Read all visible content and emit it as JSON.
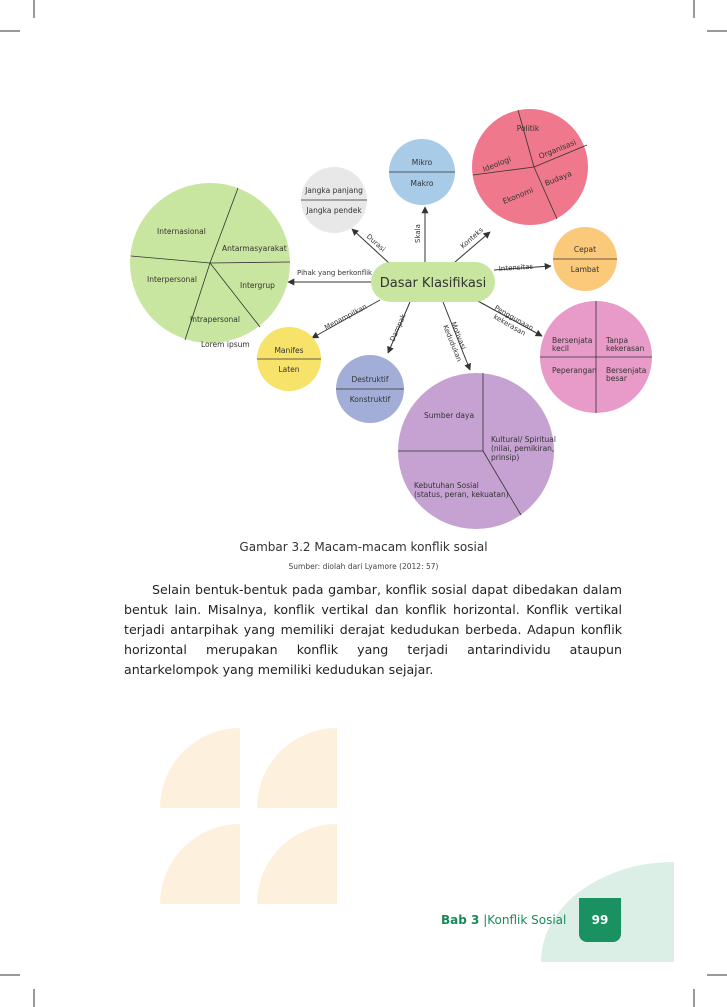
{
  "center": "Dasar Klasifikasi",
  "edges": {
    "durasi": "Durasi",
    "skala": "Skala",
    "konteks": "Konteks",
    "intensitas": "Intensitas",
    "pihak": "Pihak yang berkonflik",
    "menampilkan": "Menampilkan",
    "dampak": "Dampak",
    "motivasi_line1": "Motivasi",
    "motivasi_line2": "Kedudukan",
    "penggunaan_line1": "Penggunaan",
    "penggunaan_line2": "kekerasan"
  },
  "nodes": {
    "skala": {
      "top": "Mikro",
      "bottom": "Makro"
    },
    "durasi": {
      "top": "Jangka panjang",
      "bottom": "Jangka pendek"
    },
    "konteks": {
      "politik": "Politik",
      "organisasi": "Organisasi",
      "ideologi": "Ideologi",
      "budaya": "Budaya",
      "ekonomi": "Ekonomi"
    },
    "intensitas": {
      "top": "Cepat",
      "bottom": "Lambat"
    },
    "pihak": {
      "internasional": "Internasional",
      "antarmasyarakat": "Antarmasyarakat",
      "interpersonal": "Interpersonal",
      "intergrup": "Intergrup",
      "intrapersonal": "Intrapersonal"
    },
    "penggunaan": {
      "tl_1": "Bersenjata",
      "tl_2": "kecil",
      "tr_1": "Tanpa",
      "tr_2": "kekerasan",
      "bl": "Peperangan",
      "br_1": "Bersenjata",
      "br_2": "besar"
    },
    "menampilkan": {
      "top": "Manifes",
      "bottom": "Laten"
    },
    "dampak": {
      "top": "Destruktif",
      "bottom": "Konstruktif"
    },
    "motivasi": {
      "sumber": "Sumber daya",
      "kultural_1": "Kultural/ Spiritual",
      "kultural_2": "(nilai, pemikiran,",
      "kultural_3": "prinsip)",
      "kebutuhan_1": "Kebutuhan Sosial",
      "kebutuhan_2": "(status, peran, kekuatan)"
    }
  },
  "stray_text": "Lorem ipsum",
  "caption": "Gambar 3.2 Macam-macam konflik sosial",
  "source": "Sumber: diolah dari Lyamore (2012: 57)",
  "paragraph": "Selain bentuk-bentuk pada gambar, konflik sosial dapat dibedakan dalam bentuk lain. Misalnya, konflik vertikal dan konflik horizontal. Konflik vertikal terjadi antarpihak yang memiliki derajat kedudukan berbeda. Adapun konflik horizontal merupakan konflik yang terjadi antarindividu ataupun antarkelompok yang memiliki kedudukan sejajar.",
  "footer": {
    "chapter_bold": "Bab 3",
    "chapter_title": "Konflik Sosial",
    "page": "99"
  },
  "colors": {
    "center": "#c8e6a0",
    "skala": "#a8cbe8",
    "durasi": "#e8e8e8",
    "konteks": "#f0788c",
    "intensitas": "#fbc97a",
    "pihak": "#c8e6a0",
    "penggunaan": "#e89ac8",
    "menampilkan": "#f7e36a",
    "dampak": "#a3aed8",
    "motivasi": "#c6a2d2",
    "deco_quarter": "#fdf0dc",
    "deco_green": "#dcefe6",
    "footer_accent": "#1a9161"
  }
}
